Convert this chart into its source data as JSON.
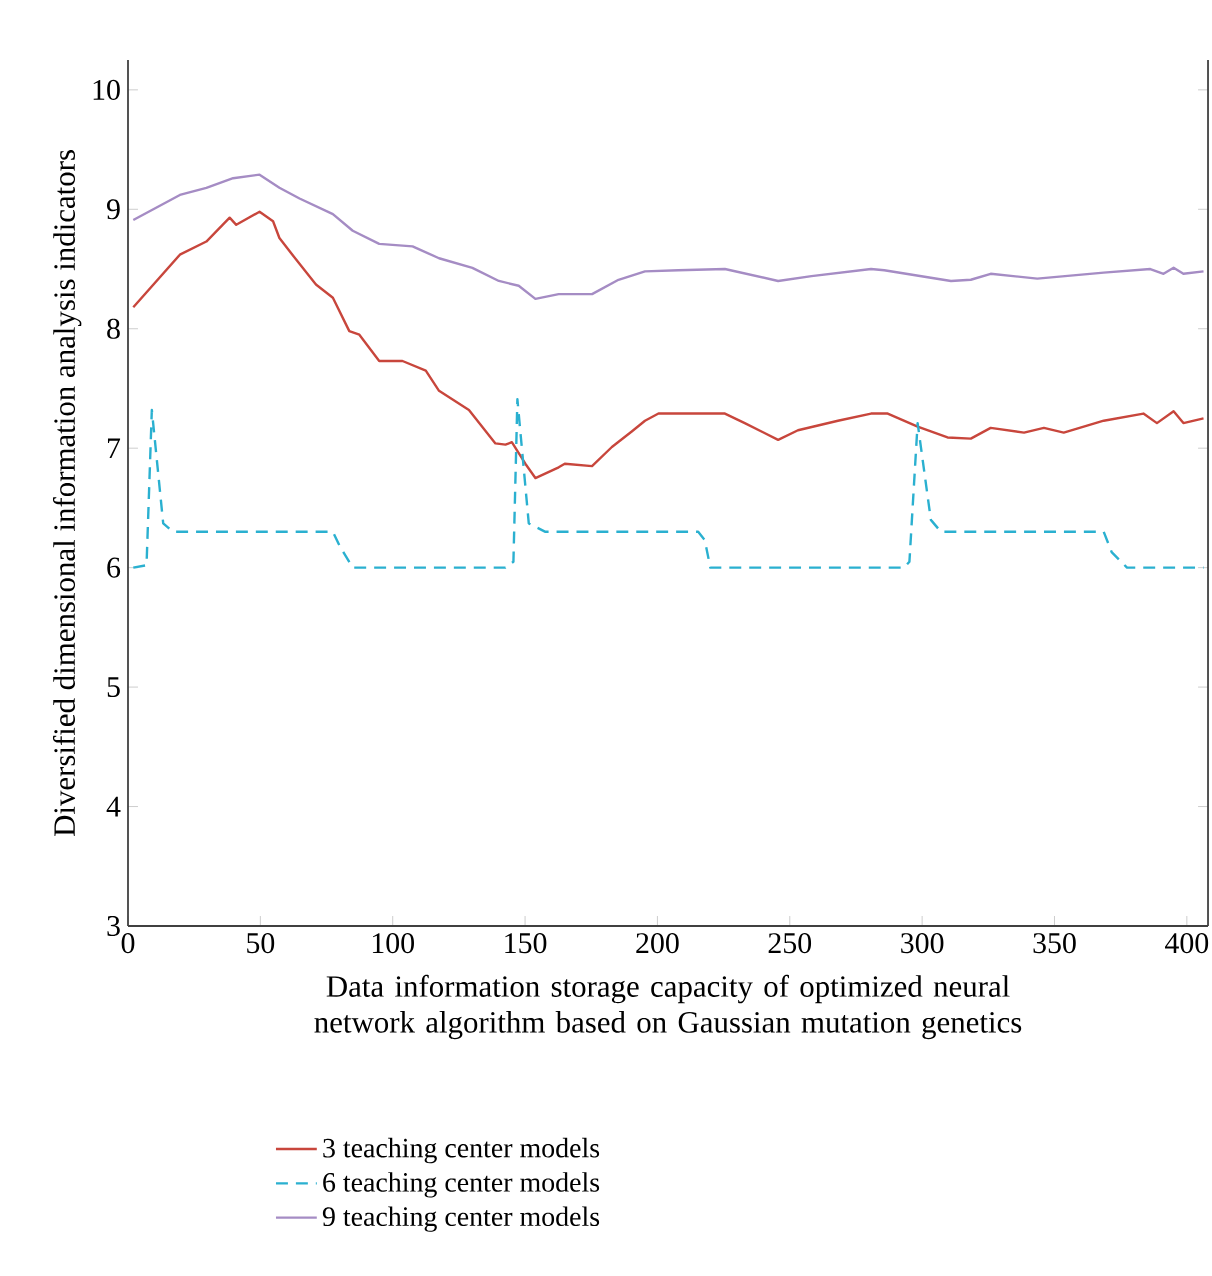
{
  "chart_data": {
    "type": "line",
    "xlabel": "Data information storage capacity of optimized neural network algorithm based on Gaussian mutation genetics",
    "ylabel": "Diversified dimensional information analysis indicators",
    "xlim": [
      0,
      408
    ],
    "ylim": [
      3,
      10.25
    ],
    "xticks": [
      0,
      50,
      100,
      150,
      200,
      250,
      300,
      350,
      400
    ],
    "yticks": [
      3,
      4,
      5,
      6,
      7,
      8,
      9,
      10
    ],
    "grid": false,
    "legend": "bottom",
    "marker": "none",
    "series": [
      {
        "name": "3 teaching center models",
        "color": "#c8463c",
        "line_style": "solid",
        "x": [
          2,
          19.6,
          29.6,
          38.4,
          40.9,
          49.7,
          54.8,
          57.2,
          61,
          71,
          77.4,
          83.6,
          87.4,
          94.9,
          103.7,
          112.5,
          117.5,
          128.8,
          138.8,
          142.6,
          145,
          150.1,
          153.9,
          162.7,
          165,
          175.3,
          182.8,
          190.3,
          195.3,
          200.4,
          207.9,
          225.5,
          233,
          245.6,
          253.1,
          268.2,
          280.7,
          287,
          298.3,
          309.6,
          318.4,
          325.9,
          338.5,
          346,
          353.5,
          368.6,
          383.6,
          388.7,
          395,
          398.7,
          406.3
        ],
        "values": [
          8.18,
          8.62,
          8.73,
          8.93,
          8.87,
          8.98,
          8.9,
          8.76,
          8.65,
          8.37,
          8.26,
          7.98,
          7.95,
          7.73,
          7.73,
          7.65,
          7.48,
          7.32,
          7.04,
          7.03,
          7.05,
          6.87,
          6.75,
          6.84,
          6.87,
          6.85,
          7.01,
          7.14,
          7.23,
          7.29,
          7.29,
          7.29,
          7.21,
          7.07,
          7.15,
          7.23,
          7.29,
          7.29,
          7.18,
          7.09,
          7.08,
          7.17,
          7.13,
          7.17,
          7.13,
          7.23,
          7.29,
          7.21,
          7.31,
          7.21,
          7.25
        ]
      },
      {
        "name": "6 teaching center models",
        "color": "#2ab0d0",
        "line_style": "dashed",
        "x": [
          2,
          7,
          9,
          13.3,
          17,
          77.4,
          80,
          84.9,
          142.6,
          145.6,
          147.1,
          151.4,
          157.7,
          215.4,
          217.9,
          220,
          293.2,
          295.2,
          298.3,
          303.3,
          307.1,
          368.6,
          371.6,
          377.4,
          406.3
        ],
        "values": [
          6.0,
          6.02,
          7.32,
          6.37,
          6.3,
          6.3,
          6.18,
          6.0,
          6.0,
          6.05,
          7.41,
          6.37,
          6.3,
          6.3,
          6.23,
          6.0,
          6.0,
          6.05,
          7.21,
          6.4,
          6.3,
          6.3,
          6.13,
          6.0,
          6.0
        ]
      },
      {
        "name": "9 teaching center models",
        "color": "#a58cc4",
        "line_style": "solid",
        "x": [
          2,
          19.6,
          29.6,
          39.7,
          49.7,
          57.2,
          64.8,
          77.4,
          84.9,
          94.9,
          107.5,
          117.5,
          130.1,
          140.1,
          147.6,
          153.9,
          162.7,
          175.3,
          185.3,
          195.3,
          207.9,
          225.5,
          245.6,
          258.2,
          280.7,
          285.7,
          310.9,
          318.4,
          325.9,
          343.5,
          368.6,
          386.2,
          391.2,
          395,
          398.7,
          406.3
        ],
        "values": [
          8.91,
          9.12,
          9.18,
          9.26,
          9.29,
          9.18,
          9.09,
          8.96,
          8.82,
          8.71,
          8.69,
          8.59,
          8.51,
          8.4,
          8.36,
          8.25,
          8.29,
          8.29,
          8.41,
          8.48,
          8.49,
          8.5,
          8.4,
          8.44,
          8.5,
          8.49,
          8.4,
          8.41,
          8.46,
          8.42,
          8.47,
          8.5,
          8.46,
          8.51,
          8.46,
          8.48
        ]
      }
    ]
  }
}
